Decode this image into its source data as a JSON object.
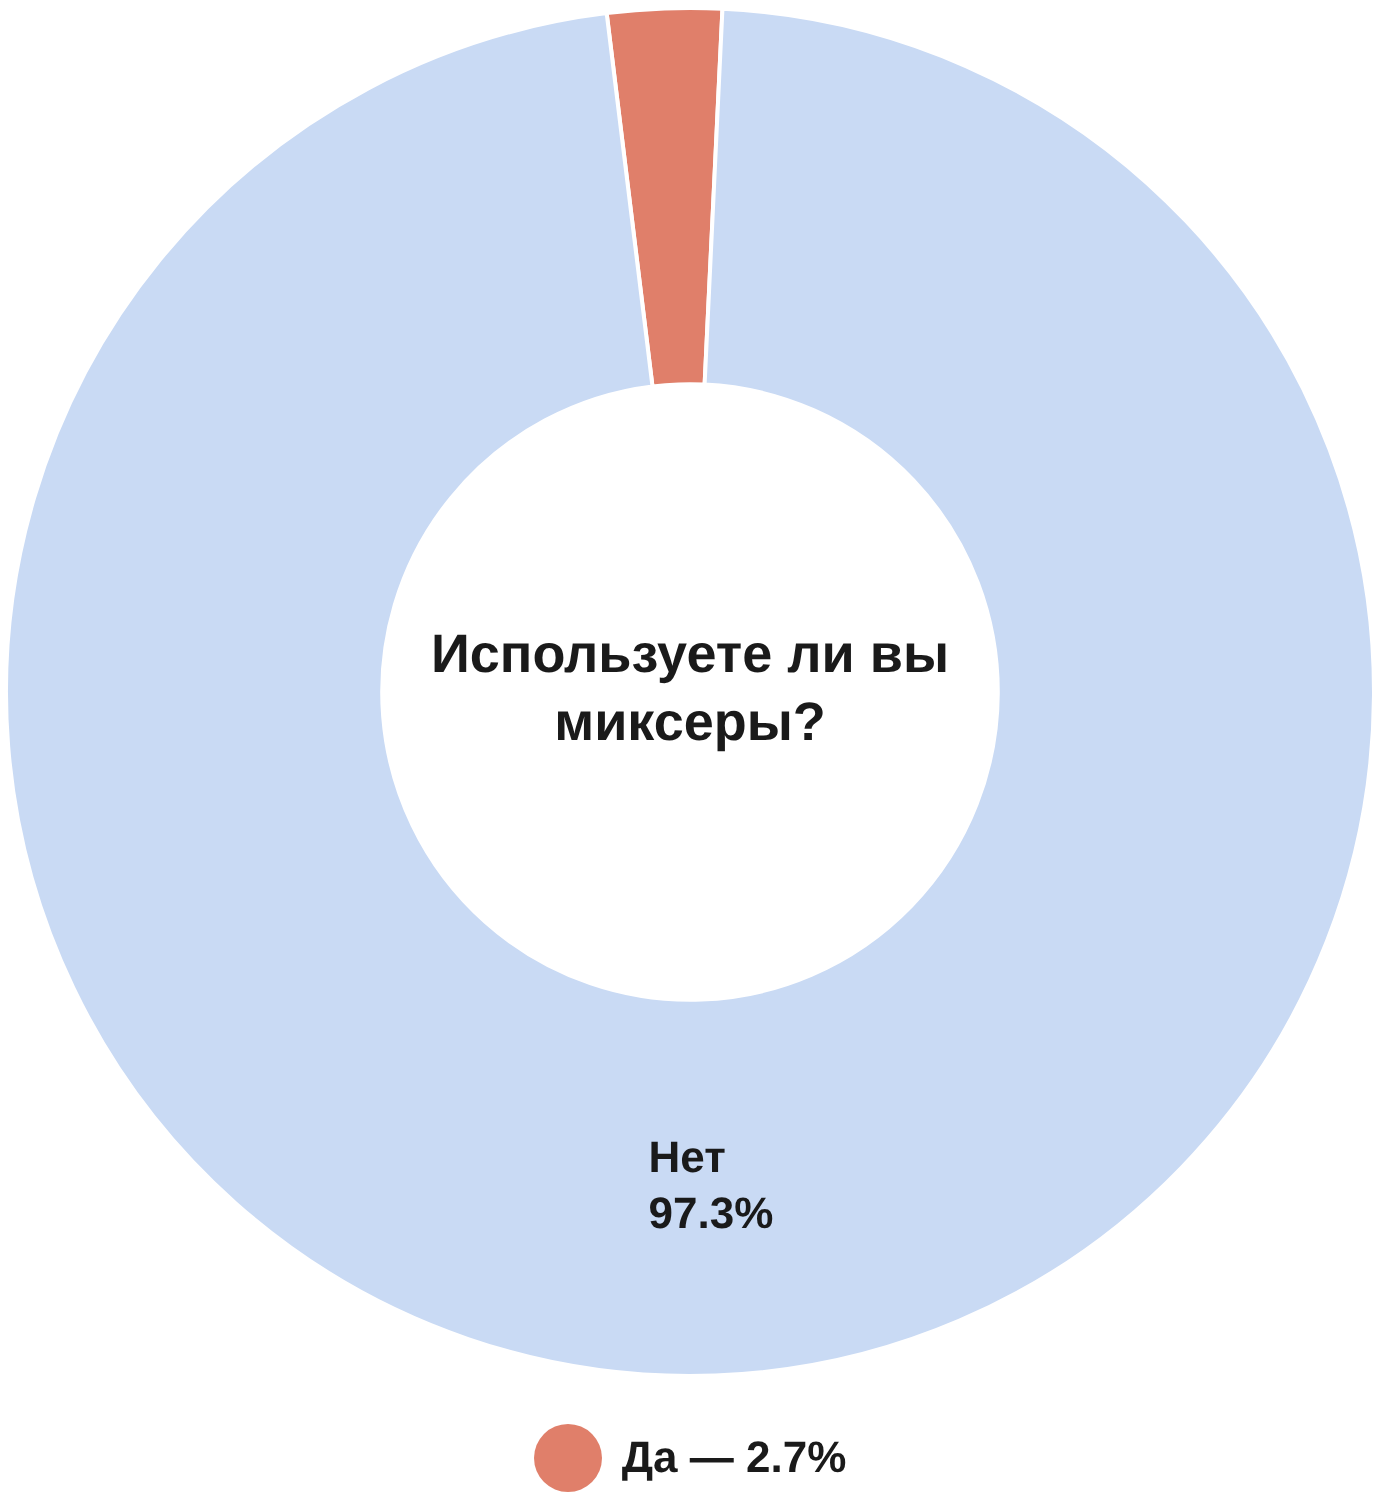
{
  "chart_data": {
    "type": "donut",
    "title": "Используете ли вы миксеры?",
    "categories": [
      "Да",
      "Нет"
    ],
    "values": [
      2.7,
      97.3
    ],
    "colors": [
      "#e07f6a",
      "#c9daf4"
    ],
    "value_labels": [
      "— 2.7%",
      "97.3%"
    ]
  }
}
